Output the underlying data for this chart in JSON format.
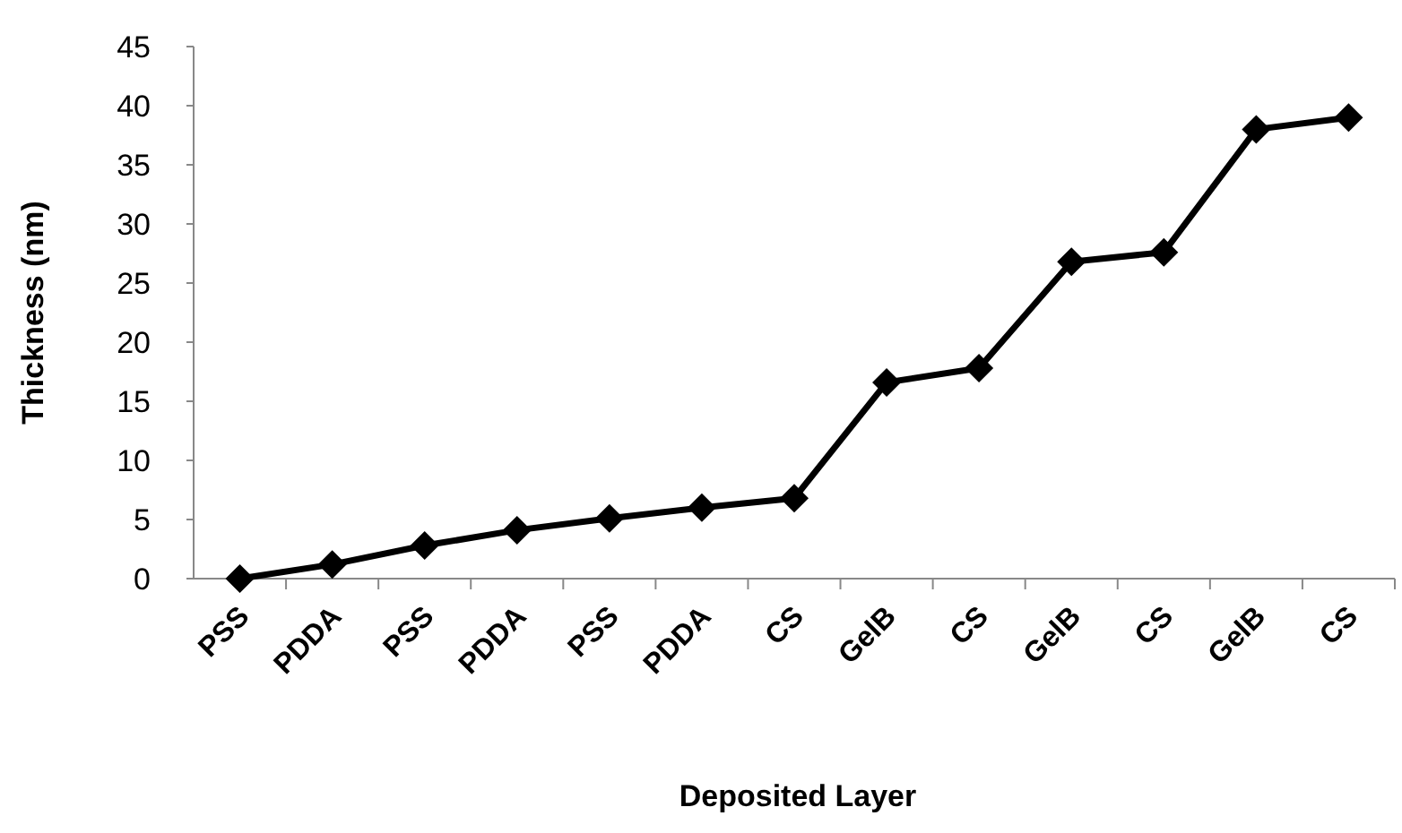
{
  "chart_data": {
    "type": "line",
    "xlabel": "Deposited Layer",
    "ylabel": "Thickness (nm)",
    "categories": [
      "PSS",
      "PDDA",
      "PSS",
      "PDDA",
      "PSS",
      "PDDA",
      "CS",
      "GelB",
      "CS",
      "GelB",
      "CS",
      "GelB",
      "CS"
    ],
    "series": [
      {
        "color": "#000000",
        "values": [
          0,
          1.2,
          2.8,
          4.1,
          5.1,
          6,
          6.8,
          16.6,
          17.8,
          26.8,
          27.6,
          38,
          39
        ]
      }
    ],
    "ylim": [
      0,
      45
    ],
    "yticks": [
      0,
      5,
      10,
      15,
      20,
      25,
      30,
      35,
      40,
      45
    ],
    "marker": "diamond",
    "line_style": "solid"
  }
}
